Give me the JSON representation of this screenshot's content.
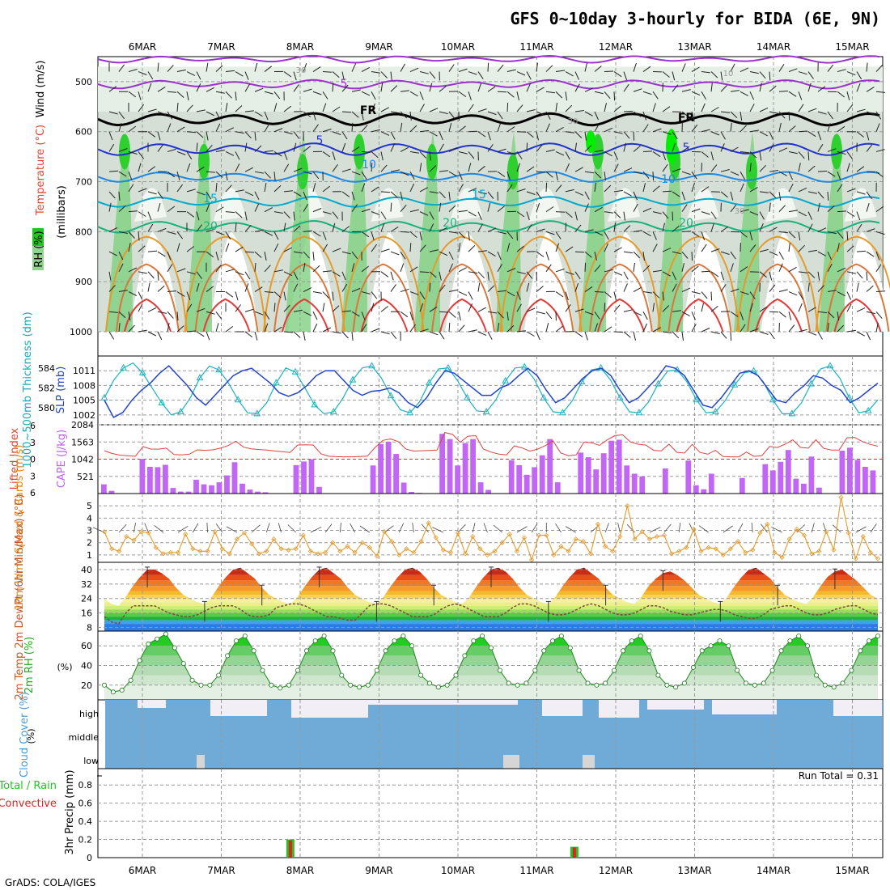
{
  "title": "GFS 0~10day 3-hourly for BIDA (6E, 9N)",
  "credit": "GrADS: COLA/IGES",
  "dates": [
    "6MAR",
    "7MAR",
    "8MAR",
    "9MAR",
    "10MAR",
    "11MAR",
    "12MAR",
    "13MAR",
    "14MAR",
    "15MAR"
  ],
  "chart_data": [
    {
      "type": "heatmap",
      "name": "upper",
      "ylabel_parts": {
        "rh": "RH (%)",
        "temp": "Temperature (°C)",
        "wind": "Wind (m/s)",
        "mb": "(millibars)"
      },
      "yticks": [
        500,
        600,
        700,
        800,
        900,
        1000
      ],
      "ylim": [
        450,
        1000
      ],
      "contour_labels": [
        {
          "text": "5",
          "color": "#9933cc"
        },
        {
          "text": "FR",
          "color": "#000"
        },
        {
          "text": "FR",
          "color": "#000"
        },
        {
          "text": "5",
          "color": "#2233cc"
        },
        {
          "text": "5",
          "color": "#2233cc"
        },
        {
          "text": "10",
          "color": "#1e88e5"
        },
        {
          "text": "10",
          "color": "#1e88e5"
        },
        {
          "text": "15",
          "color": "#00aacc"
        },
        {
          "text": "15",
          "color": "#00aacc"
        },
        {
          "text": "20",
          "color": "#19b27a"
        },
        {
          "text": "20",
          "color": "#19b27a"
        },
        {
          "text": "20",
          "color": "#19b27a"
        },
        {
          "text": "30",
          "color": "#999"
        },
        {
          "text": "10",
          "color": "#999"
        },
        {
          "text": "30",
          "color": "#999"
        },
        {
          "text": "30",
          "color": "#999"
        }
      ]
    },
    {
      "type": "line",
      "name": "thickness_slp",
      "ylabel_left": "1000~500mb Thickness (dm)",
      "ylabel_right": "SLP (mb)",
      "yticks_left": [
        580,
        582,
        584
      ],
      "yticks_right": [
        1002,
        1005,
        1008,
        1011
      ],
      "series": [
        {
          "name": "thickness",
          "values": [
            581,
            582.8,
            584,
            584.5,
            583.5,
            582,
            580.5,
            579.3,
            579.6,
            581,
            583,
            584.2,
            583.8,
            582.5,
            580.8,
            579.5,
            579.4,
            580.5,
            582.5,
            584,
            583.6,
            582,
            580.3,
            579.4,
            579.6,
            581,
            582.8,
            584,
            584.2,
            583,
            581.2,
            579.8,
            579.5,
            580.6,
            582.5,
            583.9,
            584,
            582.7,
            581,
            579.7,
            579.6,
            580.8,
            582.7,
            584,
            584.1,
            582.9,
            581,
            579.6,
            579.5,
            580.7,
            582.6,
            583.8,
            584,
            582.8,
            581,
            579.6,
            579.5,
            580.6,
            582.4,
            583.7,
            583.8,
            582.6,
            580.8,
            579.5,
            579.6,
            580.7,
            582.3,
            583.5,
            583.7,
            582.6,
            580.8,
            579.4,
            579.4,
            580.5,
            582.4,
            583.9,
            584.2,
            583,
            581,
            579.5,
            579.7,
            580.8
          ]
        },
        {
          "name": "slp",
          "values": [
            1005,
            1001.5,
            1002.5,
            1005,
            1007,
            1008.5,
            1010.5,
            1012,
            1010,
            1008,
            1005.5,
            1004,
            1006,
            1008,
            1010,
            1011,
            1011.5,
            1010,
            1008.5,
            1006.5,
            1005.8,
            1006.5,
            1008,
            1010,
            1011,
            1011,
            1009,
            1007,
            1006,
            1006.8,
            1007,
            1007.5,
            1006.5,
            1004.5,
            1003.5,
            1005.5,
            1008.5,
            1011,
            1010.5,
            1009,
            1007.5,
            1006,
            1006,
            1007.5,
            1008.3,
            1010,
            1011.5,
            1010,
            1007,
            1004.5,
            1005.5,
            1007.5,
            1009.5,
            1011,
            1011.5,
            1010,
            1007,
            1004.5,
            1005.5,
            1007.5,
            1009.5,
            1012,
            1011.5,
            1010,
            1007,
            1004,
            1003.5,
            1005.5,
            1008,
            1010.5,
            1011,
            1010,
            1007.5,
            1005,
            1004.5,
            1006.5,
            1008,
            1010,
            1009.5,
            1008,
            1007,
            1004.5,
            1005.5,
            1007,
            1008.5
          ]
        }
      ]
    },
    {
      "type": "bar",
      "name": "cape_li",
      "ylabel_left": "Lifted Index",
      "ylabel_right": "CAPE (J/kg)",
      "yticks_left": [
        "6",
        "3",
        "0",
        "3",
        "6"
      ],
      "yticks_right": [
        521,
        1042,
        1563,
        2084
      ],
      "cape": [
        280,
        80,
        0,
        0,
        0,
        1050,
        810,
        800,
        870,
        170,
        60,
        60,
        420,
        280,
        250,
        340,
        550,
        950,
        300,
        120,
        60,
        40,
        0,
        0,
        0,
        860,
        970,
        1040,
        200,
        0,
        0,
        0,
        0,
        0,
        0,
        850,
        1500,
        1570,
        1200,
        330,
        50,
        20,
        0,
        0,
        1810,
        1650,
        850,
        1530,
        1650,
        340,
        110,
        0,
        0,
        1010,
        860,
        570,
        800,
        1160,
        1650,
        340,
        0,
        0,
        1240,
        1100,
        730,
        1220,
        1600,
        1630,
        850,
        600,
        520,
        0,
        0,
        760,
        0,
        0,
        1000,
        250,
        130,
        600,
        0,
        0,
        0,
        470,
        0,
        0,
        890,
        700,
        960,
        1320,
        450,
        300,
        1120,
        180,
        0,
        0,
        1300,
        1390,
        1020,
        810,
        700
      ]
    },
    {
      "type": "line",
      "name": "wind10m",
      "ylabel": "10m Wind Speed & Barbs (m/s)",
      "yticks": [
        1,
        2,
        3,
        4,
        5
      ],
      "ylim": [
        0.4,
        6
      ],
      "values": [
        2.9,
        1.5,
        1.3,
        2.5,
        2.2,
        2.9,
        2.8,
        1.6,
        1.1,
        1.2,
        1.2,
        2.7,
        1.5,
        1.3,
        1.3,
        2.9,
        1.5,
        1.1,
        2.3,
        2.8,
        1.9,
        1.1,
        1.3,
        2.3,
        1.5,
        1.4,
        1.5,
        2.6,
        1.3,
        1.1,
        1.2,
        2,
        1.3,
        1.7,
        1.2,
        2,
        1.6,
        0.9,
        2.9,
        2.1,
        1,
        1.5,
        1.2,
        2.1,
        3.6,
        2.4,
        1.4,
        1.2,
        2.8,
        1.1,
        2.5,
        1.5,
        1,
        1.3,
        2,
        2.7,
        1.3,
        2.4,
        0.6,
        2.6,
        2.6,
        1,
        1.7,
        1.3,
        2.3,
        2.1,
        1.1,
        3.5,
        1.7,
        1.3,
        2.5,
        5,
        2.3,
        2.9,
        2.3,
        2.5,
        2.6,
        1.1,
        1.3,
        1.6,
        3.1,
        1.3,
        1.6,
        1.5,
        1,
        1.5,
        2.1,
        1.2,
        1.4,
        2.8,
        3.5,
        1.2,
        0.8,
        2.3,
        3.1,
        2.6,
        1.1,
        1.3,
        2.9,
        1.4,
        5.7,
        2.8,
        0.7,
        2.5,
        1.2,
        0.7
      ]
    },
    {
      "type": "area",
      "name": "temp2m",
      "ylabel": "2m Temp 2m DewPt (6hr Min/Max) (°C)",
      "yticks": [
        8,
        16,
        24,
        32,
        40
      ],
      "ylim": [
        6,
        44
      ],
      "temp": [
        24,
        21,
        20,
        25,
        31,
        36,
        40,
        40,
        38,
        35,
        30,
        26,
        24,
        22,
        21,
        25,
        31,
        36,
        40,
        41,
        38,
        35,
        30,
        26,
        24,
        22,
        21,
        25,
        31,
        36,
        40,
        41,
        38,
        35,
        30,
        26,
        24,
        22,
        21,
        25,
        31,
        36,
        40,
        41,
        39,
        35,
        30,
        26,
        24,
        22,
        21,
        25,
        31,
        36,
        40,
        41,
        39,
        35,
        30,
        26,
        24,
        22,
        21,
        25,
        31,
        36,
        40,
        41,
        38,
        35,
        30,
        26,
        24,
        22,
        21,
        25,
        31,
        35,
        38,
        39,
        37,
        34,
        30,
        26,
        24,
        22,
        21,
        25,
        31,
        36,
        40,
        41,
        38,
        35,
        30,
        26,
        24,
        22,
        21,
        25,
        31,
        36,
        39,
        40,
        37,
        34,
        30,
        26,
        24
      ],
      "dewpt": [
        14,
        11,
        10,
        16,
        20,
        20,
        20,
        20,
        18,
        16,
        15,
        14,
        14,
        15,
        17,
        19,
        20,
        20,
        20,
        18,
        15,
        14,
        14,
        15,
        19,
        20,
        21,
        21,
        20,
        18,
        16,
        14,
        14,
        13,
        12,
        12,
        16,
        20,
        21,
        21,
        20,
        18,
        16,
        14,
        14,
        14,
        15,
        18,
        20,
        21,
        20,
        18,
        16,
        14,
        14,
        14,
        16,
        19,
        21,
        21,
        20,
        18,
        16,
        15,
        15,
        16,
        18,
        20,
        21,
        20,
        18,
        16,
        15,
        15,
        16,
        18,
        20,
        20,
        19,
        17,
        16,
        15,
        15,
        16,
        17,
        18,
        18,
        17,
        15,
        14,
        13,
        13,
        15,
        18,
        19,
        20,
        20,
        18,
        16,
        15,
        15,
        16,
        18,
        19,
        20,
        20,
        18,
        16,
        15
      ]
    },
    {
      "type": "area",
      "name": "rh2m",
      "ylabel": "2m RH (%)",
      "yticks": [
        20,
        40,
        60
      ],
      "ylim": [
        5,
        75
      ],
      "values": [
        20,
        13,
        15,
        25,
        45,
        62,
        67,
        72,
        58,
        42,
        25,
        20,
        20,
        30,
        50,
        65,
        70,
        55,
        35,
        20,
        17,
        20,
        35,
        55,
        65,
        70,
        55,
        30,
        20,
        18,
        20,
        35,
        55,
        65,
        70,
        60,
        30,
        22,
        18,
        20,
        30,
        50,
        65,
        70,
        58,
        35,
        22,
        20,
        22,
        35,
        55,
        65,
        70,
        58,
        35,
        22,
        20,
        22,
        35,
        55,
        65,
        70,
        55,
        30,
        20,
        18,
        22,
        38,
        55,
        60,
        65,
        60,
        35,
        22,
        20,
        22,
        35,
        55,
        65,
        70,
        60,
        30,
        20,
        18,
        22,
        35,
        55,
        65,
        70
      ]
    },
    {
      "type": "heatmap",
      "name": "cloud",
      "ylabel": "Cloud Cover (%)",
      "levels": [
        "high",
        "middle",
        "low"
      ]
    },
    {
      "type": "bar",
      "name": "precip",
      "ylabel": "3hr Precip (mm)",
      "ylabel_left_parts": {
        "total": "Total / Rain",
        "conv": "Convective"
      },
      "yticks": [
        "0",
        "0.2",
        "0.4",
        "0.6",
        "0.8"
      ],
      "ylim": [
        0,
        0.98
      ],
      "run_total_label": "Run Total = 0.31",
      "bars": [
        {
          "x_index": 19,
          "total": 0.2,
          "conv": 0.19
        },
        {
          "x_index": 48,
          "total": 0.12,
          "conv": 0.11
        }
      ]
    }
  ]
}
